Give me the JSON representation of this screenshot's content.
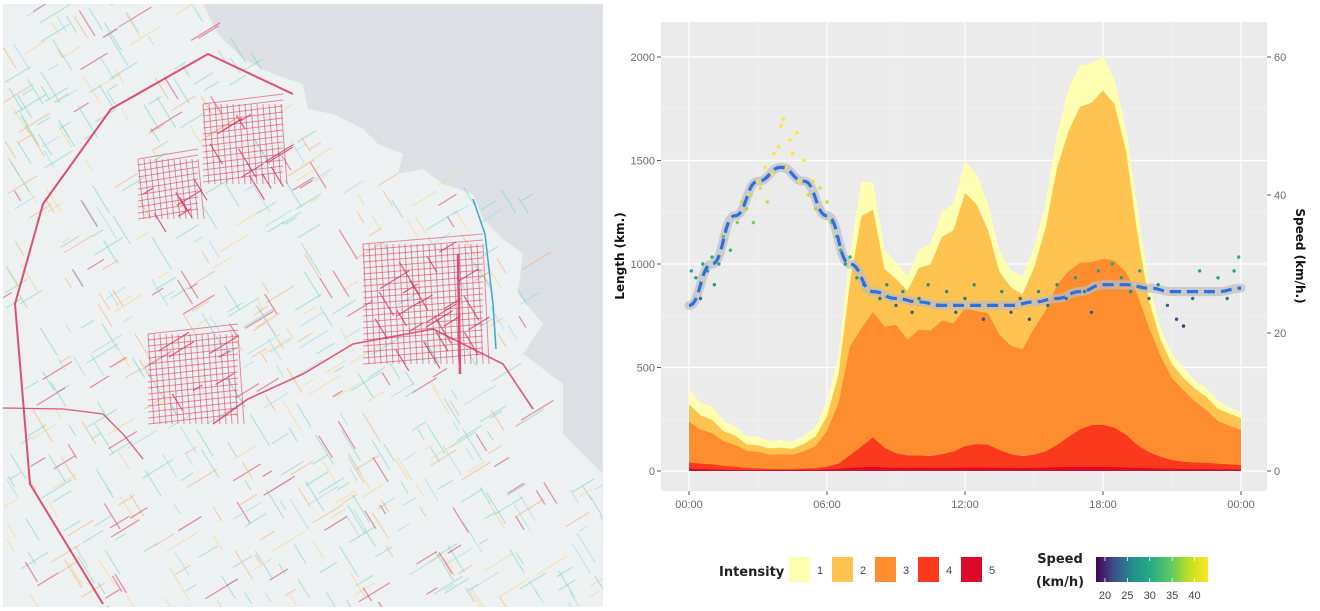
{
  "map": {
    "colors": {
      "land": "#eef1f1",
      "water": "#dde1e6",
      "low": "#7fd6c4",
      "mid": "#f2b07a",
      "high": "#d8345f",
      "river": "#39a9c8"
    }
  },
  "chart_data": {
    "type": "area",
    "title": "",
    "xlabel": "",
    "ylabel": "Length (km.)",
    "ylabel_right": "Speed (km/h.)",
    "xlim_hours": [
      0,
      24
    ],
    "ylim": [
      -100,
      2200
    ],
    "ylim_right": [
      -3,
      66
    ],
    "x_ticks": [
      {
        "hour": 0,
        "label": "00:00"
      },
      {
        "hour": 6,
        "label": "06:00"
      },
      {
        "hour": 12,
        "label": "12:00"
      },
      {
        "hour": 18,
        "label": "18:00"
      },
      {
        "hour": 24,
        "label": "00:00"
      }
    ],
    "y_ticks": [
      {
        "value": 0,
        "label": "0"
      },
      {
        "value": 500,
        "label": "500"
      },
      {
        "value": 1000,
        "label": "1000"
      },
      {
        "value": 1500,
        "label": "1500"
      },
      {
        "value": 2000,
        "label": "2000"
      }
    ],
    "y_ticks_right": [
      {
        "value": 0,
        "label": "0"
      },
      {
        "value": 20,
        "label": "20"
      },
      {
        "value": 40,
        "label": "40"
      },
      {
        "value": 60,
        "label": "60"
      }
    ],
    "grid": true,
    "x_hours": [
      0,
      0.5,
      1,
      1.5,
      2,
      2.5,
      3,
      3.5,
      4,
      4.5,
      5,
      5.5,
      6,
      6.5,
      7,
      7.5,
      8,
      8.5,
      9,
      9.5,
      10,
      10.5,
      11,
      11.5,
      12,
      12.5,
      13,
      13.5,
      14,
      14.5,
      15,
      15.5,
      16,
      16.5,
      17,
      17.5,
      18,
      18.5,
      19,
      19.5,
      20,
      20.5,
      21,
      21.5,
      22,
      22.5,
      23,
      23.5,
      24
    ],
    "series": [
      {
        "name": "5",
        "color": "#dc0a28",
        "values": [
          10,
          10,
          8,
          7,
          6,
          6,
          5,
          5,
          5,
          5,
          6,
          7,
          8,
          10,
          14,
          18,
          20,
          18,
          16,
          15,
          15,
          15,
          15,
          16,
          17,
          17,
          16,
          15,
          15,
          15,
          16,
          17,
          18,
          19,
          20,
          20,
          20,
          19,
          17,
          15,
          13,
          12,
          11,
          10,
          9,
          9,
          8,
          8,
          8
        ]
      },
      {
        "name": "4",
        "color": "#fb3a1d",
        "values": [
          40,
          35,
          30,
          25,
          20,
          15,
          12,
          10,
          8,
          10,
          12,
          15,
          20,
          35,
          70,
          120,
          160,
          120,
          85,
          75,
          70,
          72,
          80,
          100,
          120,
          130,
          120,
          100,
          80,
          75,
          80,
          95,
          120,
          160,
          200,
          230,
          230,
          210,
          170,
          120,
          90,
          70,
          55,
          45,
          40,
          38,
          35,
          32,
          30
        ]
      },
      {
        "name": "3",
        "color": "#fd8d2f",
        "values": [
          230,
          200,
          170,
          150,
          125,
          105,
          90,
          80,
          75,
          80,
          95,
          130,
          190,
          330,
          560,
          700,
          760,
          750,
          700,
          640,
          640,
          680,
          720,
          760,
          790,
          780,
          720,
          650,
          600,
          620,
          700,
          780,
          860,
          940,
          1000,
          1050,
          1060,
          1020,
          930,
          820,
          690,
          570,
          470,
          390,
          330,
          280,
          240,
          220,
          210
        ]
      },
      {
        "name": "2",
        "color": "#fec44f",
        "values": [
          310,
          270,
          230,
          200,
          170,
          140,
          120,
          110,
          105,
          110,
          130,
          180,
          260,
          470,
          850,
          1250,
          1250,
          1050,
          920,
          880,
          920,
          1000,
          1120,
          1240,
          1350,
          1300,
          1100,
          950,
          880,
          900,
          1000,
          1180,
          1400,
          1600,
          1750,
          1850,
          1900,
          1780,
          1500,
          1100,
          820,
          650,
          540,
          450,
          390,
          340,
          300,
          280,
          270
        ]
      },
      {
        "name": "1",
        "color": "#ffffb2",
        "values": [
          380,
          330,
          290,
          250,
          215,
          180,
          160,
          145,
          140,
          145,
          170,
          230,
          330,
          560,
          980,
          1420,
          1380,
          1150,
          1000,
          950,
          1000,
          1100,
          1240,
          1380,
          1500,
          1450,
          1220,
          1050,
          960,
          990,
          1100,
          1300,
          1550,
          1800,
          1950,
          2050,
          2070,
          1900,
          1600,
          1220,
          900,
          710,
          590,
          500,
          430,
          380,
          340,
          310,
          300
        ]
      }
    ],
    "speed_points": [
      {
        "hour": 0.1,
        "speed": 29
      },
      {
        "hour": 0.3,
        "speed": 28
      },
      {
        "hour": 0.5,
        "speed": 25
      },
      {
        "hour": 0.6,
        "speed": 30
      },
      {
        "hour": 0.8,
        "speed": 29
      },
      {
        "hour": 1.0,
        "speed": 31
      },
      {
        "hour": 1.1,
        "speed": 27
      },
      {
        "hour": 1.3,
        "speed": 30
      },
      {
        "hour": 1.5,
        "speed": 34
      },
      {
        "hour": 1.6,
        "speed": 35
      },
      {
        "hour": 1.8,
        "speed": 32
      },
      {
        "hour": 2.0,
        "speed": 37
      },
      {
        "hour": 2.1,
        "speed": 36
      },
      {
        "hour": 2.3,
        "speed": 39
      },
      {
        "hour": 2.5,
        "speed": 38
      },
      {
        "hour": 2.7,
        "speed": 40
      },
      {
        "hour": 2.8,
        "speed": 36
      },
      {
        "hour": 3.0,
        "speed": 42
      },
      {
        "hour": 3.1,
        "speed": 41
      },
      {
        "hour": 3.3,
        "speed": 44
      },
      {
        "hour": 3.4,
        "speed": 39
      },
      {
        "hour": 3.6,
        "speed": 43
      },
      {
        "hour": 3.7,
        "speed": 46
      },
      {
        "hour": 3.9,
        "speed": 47
      },
      {
        "hour": 4.0,
        "speed": 50
      },
      {
        "hour": 4.1,
        "speed": 51
      },
      {
        "hour": 4.2,
        "speed": 44
      },
      {
        "hour": 4.4,
        "speed": 48
      },
      {
        "hour": 4.5,
        "speed": 46
      },
      {
        "hour": 4.7,
        "speed": 49
      },
      {
        "hour": 4.8,
        "speed": 42
      },
      {
        "hour": 5.0,
        "speed": 45
      },
      {
        "hour": 5.2,
        "speed": 40
      },
      {
        "hour": 5.4,
        "speed": 42
      },
      {
        "hour": 5.5,
        "speed": 38
      },
      {
        "hour": 5.7,
        "speed": 41
      },
      {
        "hour": 5.9,
        "speed": 37
      },
      {
        "hour": 6.0,
        "speed": 39
      },
      {
        "hour": 6.2,
        "speed": 36
      },
      {
        "hour": 6.4,
        "speed": 34
      },
      {
        "hour": 6.6,
        "speed": 32
      },
      {
        "hour": 6.8,
        "speed": 30
      },
      {
        "hour": 7.0,
        "speed": 31
      },
      {
        "hour": 7.3,
        "speed": 28
      },
      {
        "hour": 7.6,
        "speed": 27
      },
      {
        "hour": 8.0,
        "speed": 26
      },
      {
        "hour": 8.3,
        "speed": 25
      },
      {
        "hour": 8.6,
        "speed": 27
      },
      {
        "hour": 9.0,
        "speed": 24
      },
      {
        "hour": 9.3,
        "speed": 26
      },
      {
        "hour": 9.7,
        "speed": 23
      },
      {
        "hour": 10.0,
        "speed": 25
      },
      {
        "hour": 10.4,
        "speed": 27
      },
      {
        "hour": 10.8,
        "speed": 24
      },
      {
        "hour": 11.2,
        "speed": 26
      },
      {
        "hour": 11.6,
        "speed": 23
      },
      {
        "hour": 12.0,
        "speed": 25
      },
      {
        "hour": 12.4,
        "speed": 27
      },
      {
        "hour": 12.8,
        "speed": 22
      },
      {
        "hour": 13.2,
        "speed": 24
      },
      {
        "hour": 13.6,
        "speed": 26
      },
      {
        "hour": 14.0,
        "speed": 23
      },
      {
        "hour": 14.4,
        "speed": 25
      },
      {
        "hour": 14.8,
        "speed": 22
      },
      {
        "hour": 15.2,
        "speed": 26
      },
      {
        "hour": 15.6,
        "speed": 24
      },
      {
        "hour": 16.0,
        "speed": 27
      },
      {
        "hour": 16.4,
        "speed": 25
      },
      {
        "hour": 16.8,
        "speed": 28
      },
      {
        "hour": 17.2,
        "speed": 26
      },
      {
        "hour": 17.5,
        "speed": 23
      },
      {
        "hour": 17.8,
        "speed": 29
      },
      {
        "hour": 18.1,
        "speed": 27
      },
      {
        "hour": 18.4,
        "speed": 30
      },
      {
        "hour": 18.8,
        "speed": 28
      },
      {
        "hour": 19.2,
        "speed": 26
      },
      {
        "hour": 19.6,
        "speed": 29
      },
      {
        "hour": 20.0,
        "speed": 25
      },
      {
        "hour": 20.4,
        "speed": 27
      },
      {
        "hour": 20.8,
        "speed": 24
      },
      {
        "hour": 21.2,
        "speed": 22
      },
      {
        "hour": 21.5,
        "speed": 21
      },
      {
        "hour": 21.9,
        "speed": 25
      },
      {
        "hour": 22.2,
        "speed": 29
      },
      {
        "hour": 22.6,
        "speed": 26
      },
      {
        "hour": 23.0,
        "speed": 28
      },
      {
        "hour": 23.4,
        "speed": 25
      },
      {
        "hour": 23.7,
        "speed": 29
      },
      {
        "hour": 23.9,
        "speed": 31
      }
    ],
    "trend_line": {
      "color": "#2f6fe0",
      "hours": [
        0,
        1,
        2,
        3,
        4,
        5,
        6,
        7,
        8,
        9,
        10,
        11,
        12,
        13,
        14,
        15,
        16,
        17,
        18,
        19,
        20,
        21,
        22,
        23,
        24
      ],
      "speed": [
        24,
        30,
        37,
        42,
        44,
        42,
        37,
        30,
        26,
        25,
        24.5,
        24,
        24,
        24,
        24,
        24.5,
        25,
        26,
        27,
        27,
        26.5,
        26,
        26,
        26,
        26.5
      ]
    },
    "legend": {
      "intensity_title": "Intensity",
      "intensity_items": [
        {
          "label": "1",
          "color": "#ffffb2"
        },
        {
          "label": "2",
          "color": "#fec44f"
        },
        {
          "label": "3",
          "color": "#fd8d2f"
        },
        {
          "label": "4",
          "color": "#fb3a1d"
        },
        {
          "label": "5",
          "color": "#dc0a28"
        }
      ],
      "speed_title_line1": "Speed",
      "speed_title_line2": "(km/h)",
      "speed_ticks": [
        {
          "value": 20,
          "label": "20"
        },
        {
          "value": 25,
          "label": "25"
        },
        {
          "value": 30,
          "label": "30"
        },
        {
          "value": 35,
          "label": "35"
        },
        {
          "value": 40,
          "label": "40"
        }
      ],
      "speed_range": [
        18,
        43
      ],
      "speed_colors": [
        "#440154",
        "#3b528b",
        "#21908d",
        "#27ad81",
        "#5dc963",
        "#c2df23",
        "#fde725"
      ]
    }
  }
}
